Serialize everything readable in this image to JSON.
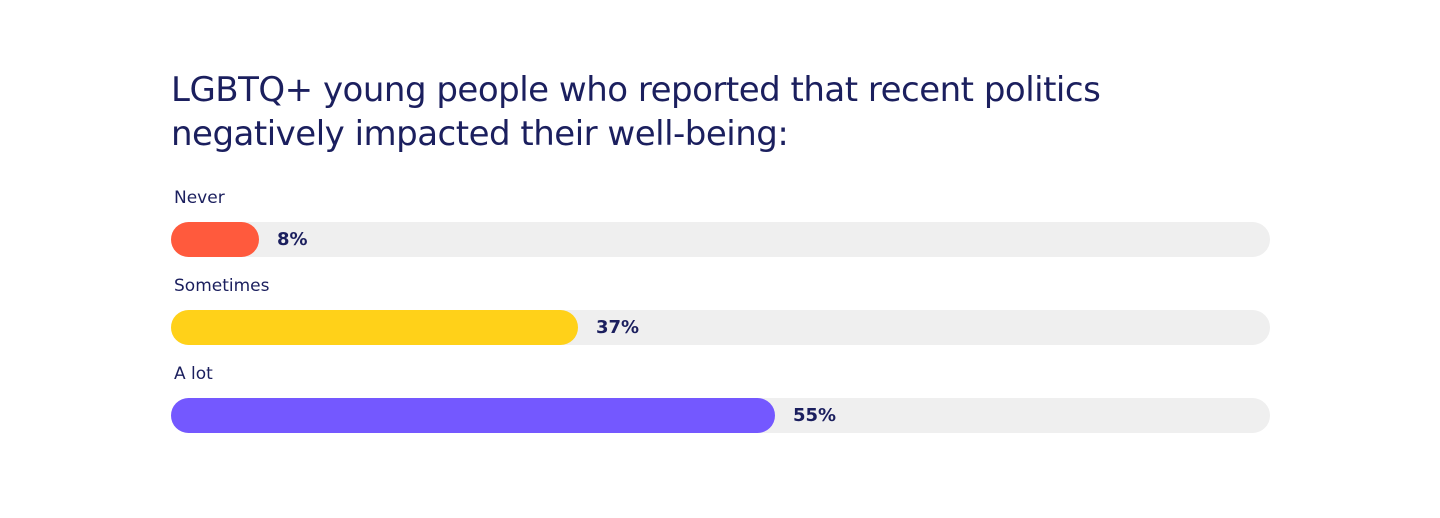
{
  "chart_data": {
    "type": "bar",
    "orientation": "horizontal",
    "title": "LGBTQ+ young people who reported that recent politics negatively impacted their well-being:",
    "categories": [
      "Never",
      "Sometimes",
      "A lot"
    ],
    "values": [
      8,
      37,
      55
    ],
    "value_labels": [
      "8%",
      "37%",
      "55%"
    ],
    "colors": [
      "#ff5a3d",
      "#ffd119",
      "#7458ff"
    ],
    "track_color": "#efefef",
    "xlim": [
      0,
      100
    ],
    "grid": false,
    "legend": "none"
  }
}
